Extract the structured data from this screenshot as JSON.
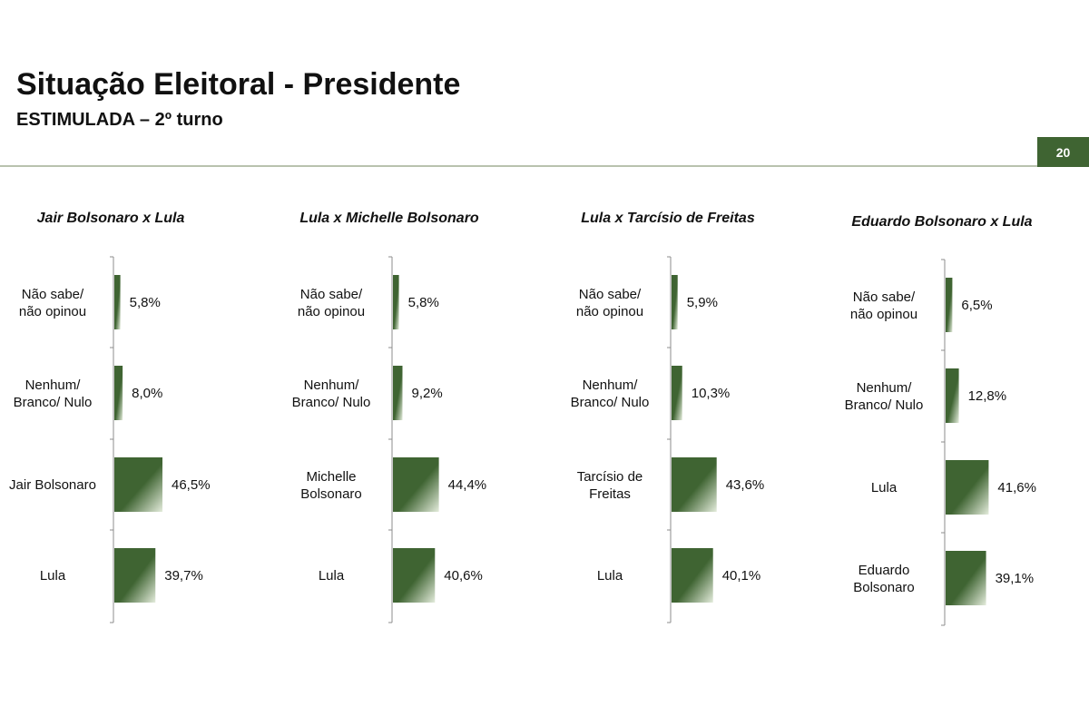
{
  "header": {
    "title": "Situação Eleitoral - Presidente",
    "subtitle": "ESTIMULADA – 2º turno",
    "page_number": "20"
  },
  "colors": {
    "bar_dark": "#3f6432",
    "bar_light": "#e4ecdc",
    "accent": "#3f6432",
    "rule": "#b9c2ae"
  },
  "chart_data": [
    {
      "type": "bar",
      "orientation": "horizontal",
      "title": "Jair Bolsonaro x Lula",
      "categories": [
        "Não sabe/ não opinou",
        "Nenhum/ Branco/ Nulo",
        "Jair Bolsonaro",
        "Lula"
      ],
      "values": [
        5.8,
        8.0,
        46.5,
        39.7
      ],
      "value_labels": [
        "5,8%",
        "8,0%",
        "46,5%",
        "39,7%"
      ]
    },
    {
      "type": "bar",
      "orientation": "horizontal",
      "title": "Lula x Michelle Bolsonaro",
      "categories": [
        "Não sabe/ não opinou",
        "Nenhum/ Branco/ Nulo",
        "Michelle Bolsonaro",
        "Lula"
      ],
      "values": [
        5.8,
        9.2,
        44.4,
        40.6
      ],
      "value_labels": [
        "5,8%",
        "9,2%",
        "44,4%",
        "40,6%"
      ]
    },
    {
      "type": "bar",
      "orientation": "horizontal",
      "title": "Lula x Tarcísio de Freitas",
      "categories": [
        "Não sabe/ não opinou",
        "Nenhum/ Branco/ Nulo",
        "Tarcísio de Freitas",
        "Lula"
      ],
      "values": [
        5.9,
        10.3,
        43.6,
        40.1
      ],
      "value_labels": [
        "5,9%",
        "10,3%",
        "43,6%",
        "40,1%"
      ]
    },
    {
      "type": "bar",
      "orientation": "horizontal",
      "title": "Eduardo Bolsonaro x Lula",
      "categories": [
        "Não sabe/ não opinou",
        "Nenhum/ Branco/ Nulo",
        "Lula",
        "Eduardo Bolsonaro"
      ],
      "values": [
        6.5,
        12.8,
        41.6,
        39.1
      ],
      "value_labels": [
        "6,5%",
        "12,8%",
        "41,6%",
        "39,1%"
      ]
    }
  ]
}
